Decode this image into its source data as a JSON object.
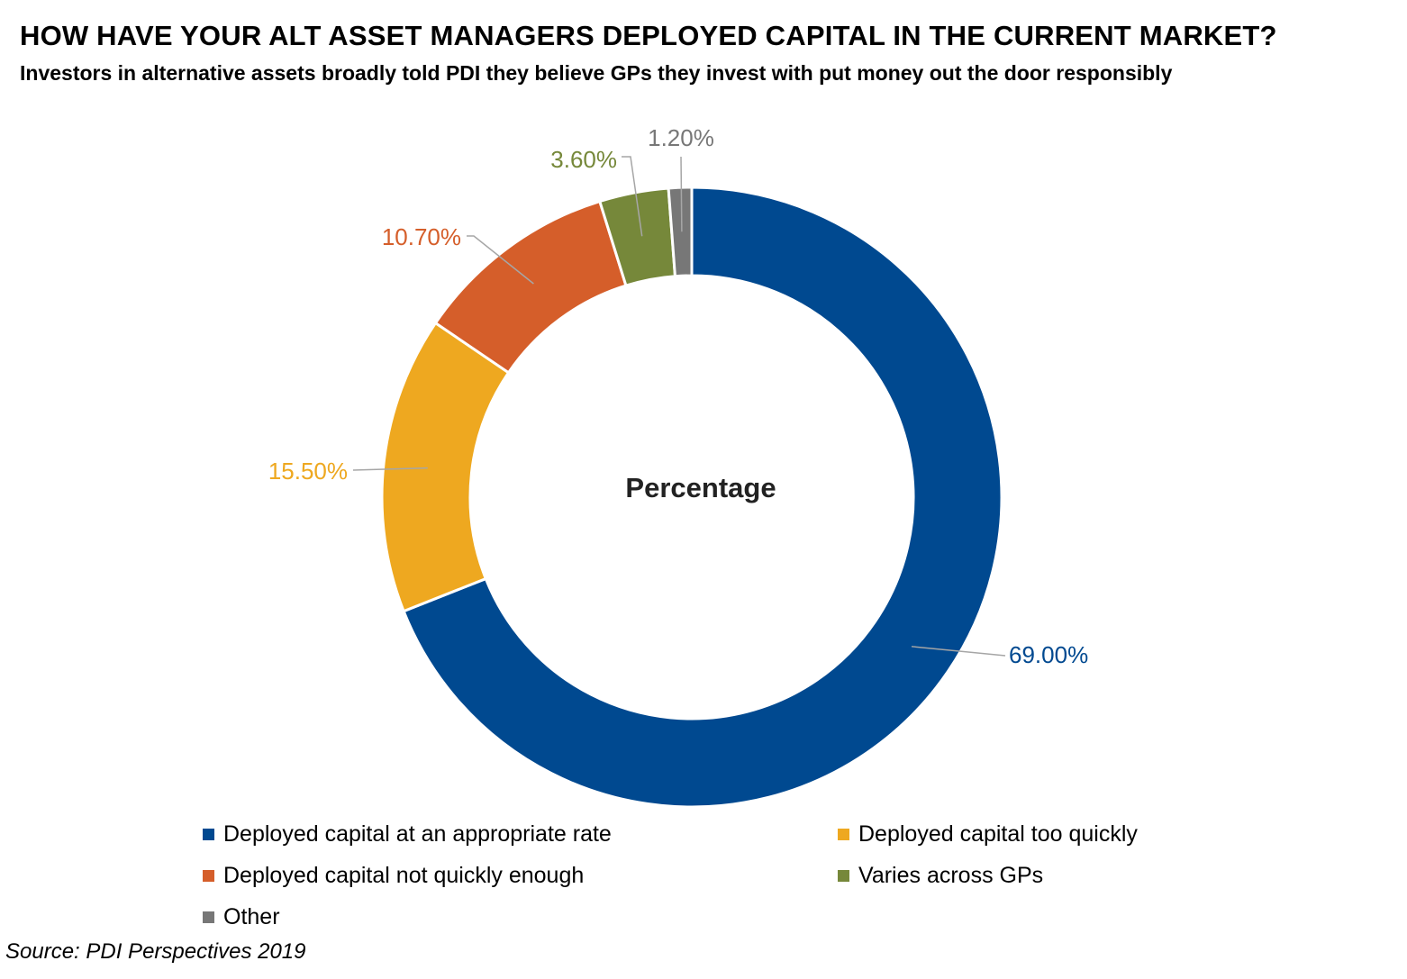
{
  "header": {
    "title": "HOW HAVE YOUR ALT ASSET MANAGERS DEPLOYED CAPITAL IN THE CURRENT MARKET?",
    "subtitle": "Investors in alternative assets broadly told PDI they believe GPs they invest with put money out the door responsibly"
  },
  "chart_data": {
    "type": "pie",
    "style": "donut",
    "center_label": "Percentage",
    "slices": [
      {
        "label": "Deployed capital at an appropriate rate",
        "value": 69.0,
        "value_label": "69.00%",
        "color": "#004990"
      },
      {
        "label": "Deployed capital too quickly",
        "value": 15.5,
        "value_label": "15.50%",
        "color": "#EEA820"
      },
      {
        "label": "Deployed capital not quickly enough",
        "value": 10.7,
        "value_label": "10.70%",
        "color": "#D55E2A"
      },
      {
        "label": "Varies across GPs",
        "value": 3.6,
        "value_label": "3.60%",
        "color": "#76883A"
      },
      {
        "label": "Other",
        "value": 1.2,
        "value_label": "1.20%",
        "color": "#777777"
      }
    ],
    "legend_position": "bottom"
  },
  "footer": {
    "source": "Source: PDI Perspectives 2019"
  }
}
